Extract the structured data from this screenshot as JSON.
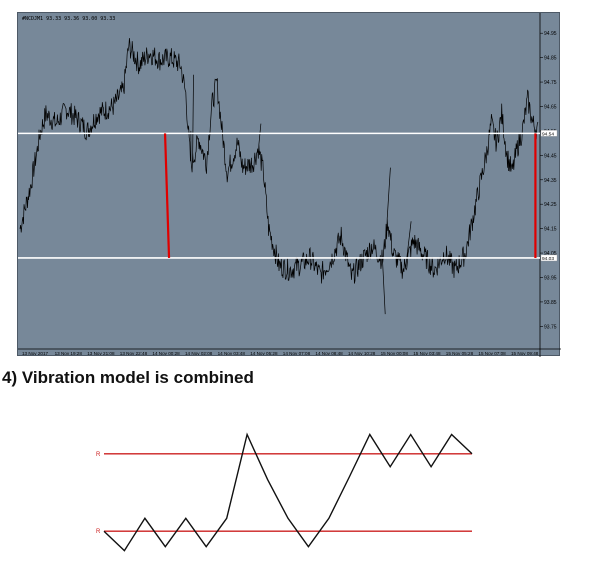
{
  "chart_data": [
    {
      "type": "line",
      "header": "#NCDJM1  93.33 93.36 93.00 93.33",
      "background": "#778899",
      "price_color": "#000000",
      "level_color": "#ffffff",
      "move_color": "#e00000",
      "ylim": [
        93.69,
        95.0
      ],
      "y_ticks": [
        "94.95",
        "94.85",
        "94.75",
        "94.65",
        "94.55",
        "94.45",
        "94.35",
        "94.25",
        "94.15",
        "94.05",
        "93.95",
        "93.85",
        "93.75"
      ],
      "x_ticks": [
        "13 Nov 2017",
        "13 Nov 19:28",
        "13 Nov 21:08",
        "13 Nov 22:48",
        "14 Nov 00:28",
        "14 Nov 02:08",
        "14 Nov 03:48",
        "14 Nov 05:28",
        "14 Nov 07:08",
        "14 Nov 08:48",
        "14 Nov 10:28",
        "15 Nov 00:08",
        "15 Nov 03:48",
        "15 Nov 05:28",
        "15 Nov 07:08",
        "15 Nov 09:48"
      ],
      "levels": [
        {
          "value": 94.54,
          "label": "94.54"
        },
        {
          "value": 94.03,
          "label": "94.03"
        }
      ],
      "price_anchors": [
        [
          0.0,
          94.15
        ],
        [
          0.02,
          94.32
        ],
        [
          0.04,
          94.55
        ],
        [
          0.05,
          94.62
        ],
        [
          0.07,
          94.58
        ],
        [
          0.09,
          94.64
        ],
        [
          0.11,
          94.6
        ],
        [
          0.13,
          94.55
        ],
        [
          0.15,
          94.62
        ],
        [
          0.18,
          94.65
        ],
        [
          0.2,
          94.72
        ],
        [
          0.21,
          94.9
        ],
        [
          0.23,
          94.82
        ],
        [
          0.25,
          94.87
        ],
        [
          0.27,
          94.84
        ],
        [
          0.29,
          94.85
        ],
        [
          0.31,
          94.82
        ],
        [
          0.32,
          94.7
        ],
        [
          0.33,
          94.4
        ],
        [
          0.345,
          94.52
        ],
        [
          0.36,
          94.42
        ],
        [
          0.37,
          94.65
        ],
        [
          0.38,
          94.75
        ],
        [
          0.39,
          94.55
        ],
        [
          0.4,
          94.38
        ],
        [
          0.42,
          94.5
        ],
        [
          0.43,
          94.4
        ],
        [
          0.45,
          94.42
        ],
        [
          0.46,
          94.48
        ],
        [
          0.47,
          94.38
        ],
        [
          0.48,
          94.15
        ],
        [
          0.5,
          94.0
        ],
        [
          0.52,
          93.98
        ],
        [
          0.54,
          94.0
        ],
        [
          0.56,
          94.03
        ],
        [
          0.58,
          93.96
        ],
        [
          0.6,
          94.02
        ],
        [
          0.62,
          94.12
        ],
        [
          0.64,
          93.95
        ],
        [
          0.66,
          94.02
        ],
        [
          0.68,
          94.08
        ],
        [
          0.7,
          94.02
        ],
        [
          0.71,
          94.18
        ],
        [
          0.72,
          94.05
        ],
        [
          0.74,
          93.98
        ],
        [
          0.76,
          94.1
        ],
        [
          0.78,
          94.04
        ],
        [
          0.8,
          93.98
        ],
        [
          0.82,
          94.05
        ],
        [
          0.84,
          93.98
        ],
        [
          0.86,
          94.05
        ],
        [
          0.88,
          94.25
        ],
        [
          0.9,
          94.45
        ],
        [
          0.91,
          94.58
        ],
        [
          0.92,
          94.5
        ],
        [
          0.93,
          94.62
        ],
        [
          0.94,
          94.45
        ],
        [
          0.95,
          94.38
        ],
        [
          0.96,
          94.48
        ],
        [
          0.97,
          94.55
        ],
        [
          0.98,
          94.68
        ],
        [
          0.99,
          94.58
        ],
        [
          1.0,
          94.55
        ]
      ],
      "spikes": [
        [
          0.33,
          94.55
        ],
        [
          0.335,
          94.78
        ],
        [
          0.465,
          94.58
        ],
        [
          0.715,
          94.4
        ],
        [
          0.705,
          93.8
        ],
        [
          0.755,
          94.18
        ]
      ],
      "moves": [
        {
          "x": 0.28,
          "from": 94.54,
          "to": 94.03
        },
        {
          "x": 0.995,
          "from": 94.54,
          "to": 94.03
        }
      ]
    },
    {
      "type": "line",
      "title": "4) Vibration model is combined",
      "level_labels": [
        "R",
        "R"
      ],
      "level_color": "#cc2020",
      "line_color": "#111111",
      "ylim": [
        0,
        10
      ],
      "levels": [
        8,
        2
      ],
      "points": [
        [
          0,
          2
        ],
        [
          1,
          0.5
        ],
        [
          2,
          3
        ],
        [
          3,
          0.8
        ],
        [
          4,
          3
        ],
        [
          5,
          0.8
        ],
        [
          6,
          3
        ],
        [
          7,
          9.5
        ],
        [
          8,
          6
        ],
        [
          9,
          3
        ],
        [
          10,
          0.8
        ],
        [
          11,
          3
        ],
        [
          12,
          6.2
        ],
        [
          13,
          9.5
        ],
        [
          14,
          7
        ],
        [
          15,
          9.5
        ],
        [
          16,
          7
        ],
        [
          17,
          9.5
        ],
        [
          18,
          8
        ]
      ]
    }
  ]
}
